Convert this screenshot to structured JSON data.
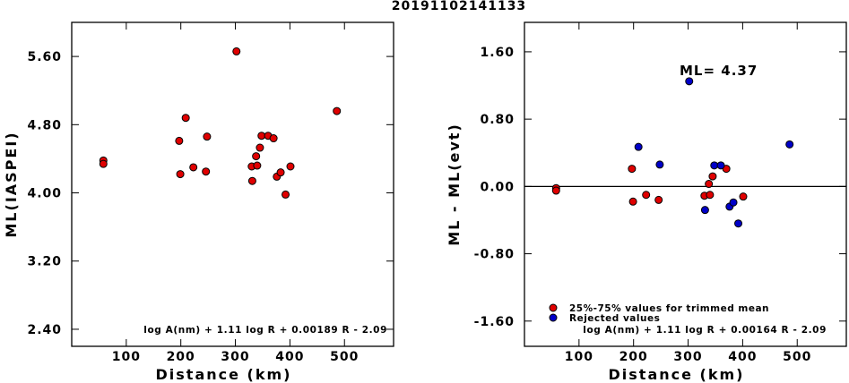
{
  "title": "20191102141133",
  "chart_data": [
    {
      "type": "scatter",
      "xlabel": "Distance (km)",
      "ylabel": "ML(IASPEI)",
      "xlim": [
        0,
        590
      ],
      "ylim": [
        2.2,
        6.0
      ],
      "xticks": [
        "100",
        "200",
        "300",
        "400",
        "500"
      ],
      "xtick_values": [
        100,
        200,
        300,
        400,
        500
      ],
      "yticks": [
        "2.40",
        "3.20",
        "4.00",
        "4.80",
        "5.60"
      ],
      "ytick_values": [
        2.4,
        3.2,
        4.0,
        4.8,
        5.6
      ],
      "formula": "log A(nm) + 1.11 log R + 0.00189 R - 2.09",
      "series": [
        {
          "color": "#e00000",
          "x": [
            58,
            58,
            197,
            199,
            209,
            223,
            246,
            248,
            302,
            330,
            331,
            338,
            340,
            345,
            348,
            360,
            370,
            376,
            383,
            392,
            401,
            486
          ],
          "y": [
            4.38,
            4.34,
            4.61,
            4.22,
            4.88,
            4.3,
            4.25,
            4.66,
            5.66,
            4.31,
            4.14,
            4.43,
            4.32,
            4.53,
            4.67,
            4.67,
            4.64,
            4.19,
            4.24,
            3.98,
            4.31,
            4.96
          ]
        }
      ]
    },
    {
      "type": "scatter",
      "xlabel": "Distance (km)",
      "ylabel": "ML - ML(evt)",
      "xlim": [
        0,
        590
      ],
      "ylim": [
        -1.9,
        1.95
      ],
      "xticks": [
        "100",
        "200",
        "300",
        "400",
        "500"
      ],
      "xtick_values": [
        100,
        200,
        300,
        400,
        500
      ],
      "yticks": [
        "-1.60",
        "-0.80",
        "0.00",
        "0.80",
        "1.60"
      ],
      "ytick_values": [
        -1.6,
        -0.8,
        0.0,
        0.8,
        1.6
      ],
      "reference_line": 0.0,
      "annotation": "ML= 4.37",
      "formula": "log A(nm) + 1.11 log R + 0.00164 R - 2.09",
      "series": [
        {
          "name": "25%-75% values for trimmed mean",
          "color": "#e00000",
          "x": [
            58,
            58,
            197,
            199,
            223,
            246,
            330,
            338,
            340,
            345,
            370,
            401
          ],
          "y": [
            -0.02,
            -0.05,
            0.21,
            -0.18,
            -0.1,
            -0.16,
            -0.11,
            0.03,
            -0.1,
            0.12,
            0.21,
            -0.12
          ]
        },
        {
          "name": "Rejected values",
          "color": "#0000c8",
          "x": [
            209,
            248,
            302,
            331,
            348,
            360,
            376,
            383,
            392,
            486
          ],
          "y": [
            0.47,
            0.26,
            1.25,
            -0.28,
            0.25,
            0.25,
            -0.24,
            -0.19,
            -0.44,
            0.5
          ]
        }
      ]
    }
  ]
}
